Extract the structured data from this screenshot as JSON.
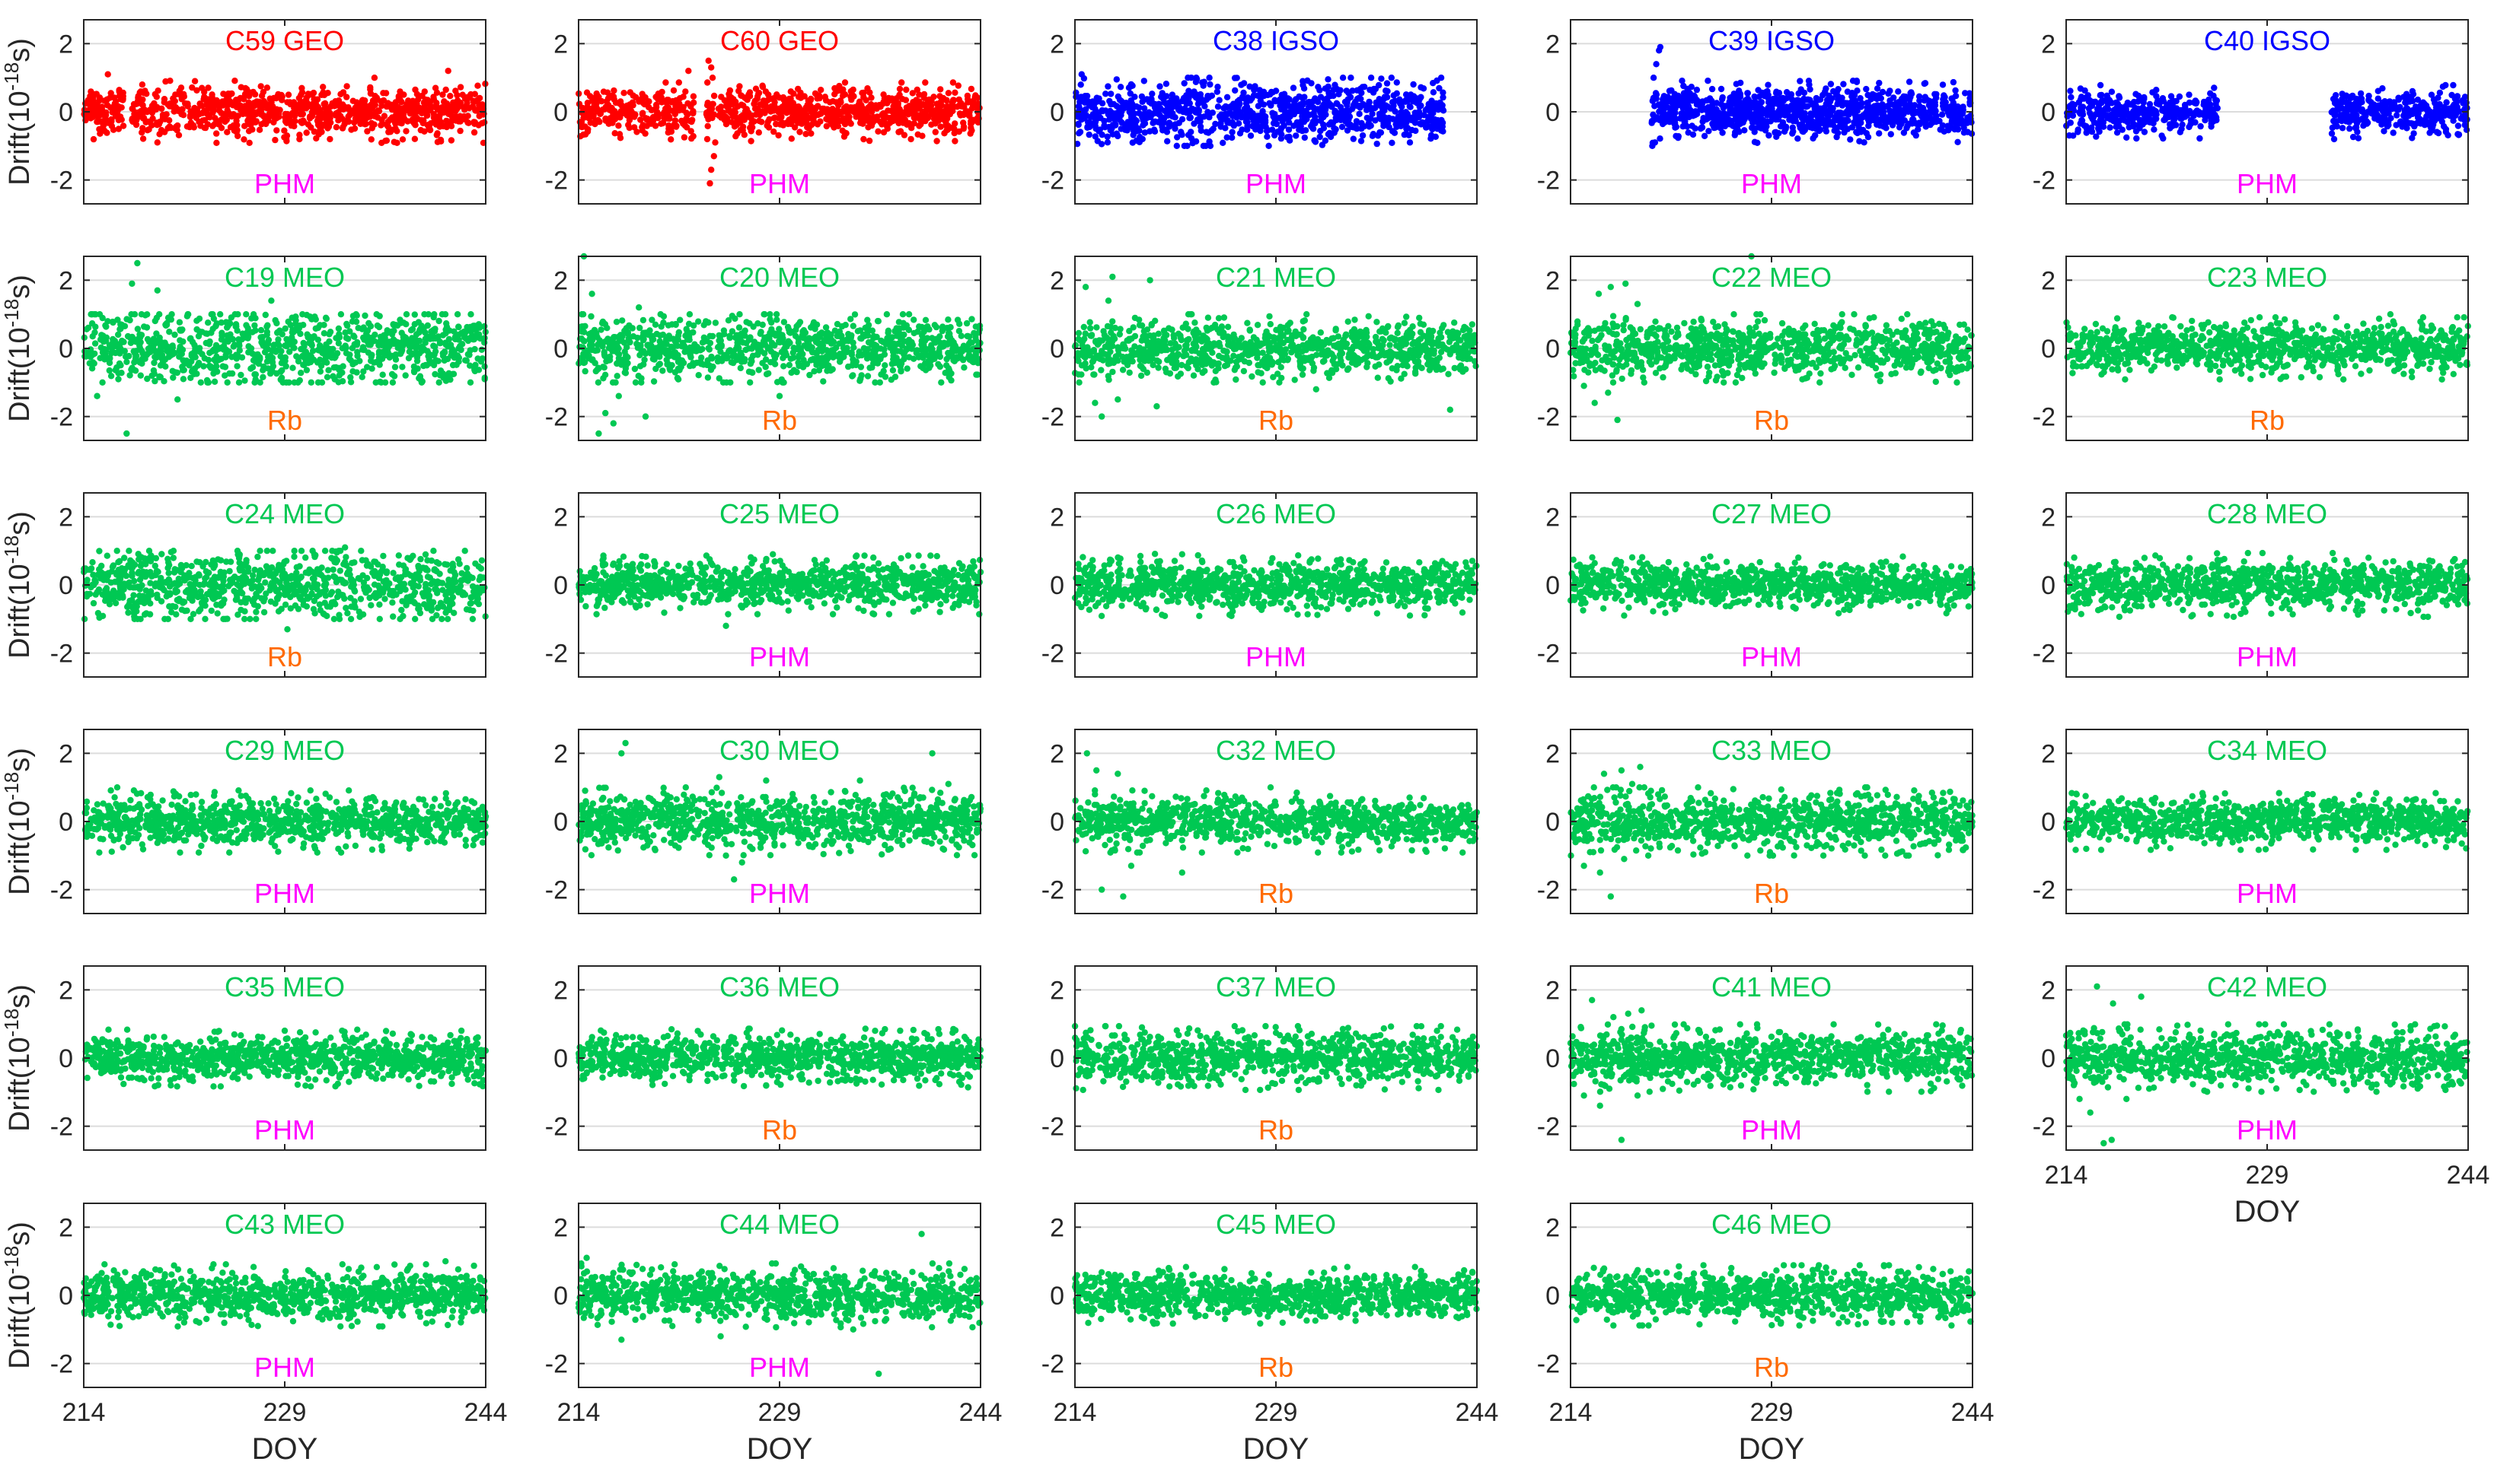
{
  "chart_data": {
    "type": "scatter",
    "layout": "6x5 grid of small multiples",
    "x_axis": {
      "label": "DOY",
      "range": [
        214,
        244
      ],
      "ticks": [
        214,
        229,
        244
      ]
    },
    "y_axis": {
      "label_prefix": "Drift(10",
      "label_exponent": "-18",
      "label_suffix": "s)",
      "range": [
        -2.7,
        2.7
      ],
      "ticks": [
        -2,
        0,
        2
      ]
    },
    "colors": {
      "GEO": "#ff0000",
      "IGSO": "#0000ff",
      "MEO": "#00c853",
      "PHM": "#ff00ff",
      "Rb": "#ff6a00",
      "axis": "#262626",
      "grid": "#dcdcdc"
    },
    "panels": [
      {
        "title": "C59 GEO",
        "orbit": "GEO",
        "clock": "PHM",
        "spread": 0.35,
        "gaps": [
          [
            217.0,
            217.6
          ]
        ],
        "outliers": [
          [
            215.8,
            1.1
          ],
          [
            222.3,
            0.9
          ],
          [
            235.7,
            1.0
          ],
          [
            241.2,
            1.2
          ],
          [
            219.5,
            -0.9
          ],
          [
            230.1,
            -0.8
          ]
        ],
        "xlabels": false,
        "ylabels": true
      },
      {
        "title": "C60 GEO",
        "orbit": "GEO",
        "clock": "PHM",
        "spread": 0.33,
        "gaps": [
          [
            222.6,
            223.5
          ]
        ],
        "outliers": [
          [
            223.7,
            1.5
          ],
          [
            223.9,
            1.3
          ],
          [
            224.0,
            1.0
          ],
          [
            223.8,
            -2.1
          ],
          [
            223.9,
            -1.7
          ],
          [
            224.1,
            -1.3
          ],
          [
            224.2,
            -0.9
          ],
          [
            223.6,
            -0.8
          ],
          [
            222.2,
            1.2
          ]
        ],
        "xlabels": false,
        "ylabels": true
      },
      {
        "title": "C38 IGSO",
        "orbit": "IGSO",
        "clock": "PHM",
        "spread": 0.42,
        "range": [
          214,
          241.5
        ],
        "gaps": [],
        "outliers": [
          [
            214.5,
            1.1
          ],
          [
            221.6,
            -1.0
          ],
          [
            231.0,
            0.9
          ],
          [
            239.0,
            -0.9
          ]
        ],
        "xlabels": false,
        "ylabels": true
      },
      {
        "title": "C39 IGSO",
        "orbit": "IGSO",
        "clock": "PHM",
        "spread": 0.35,
        "range": [
          220.0,
          244
        ],
        "gaps": [],
        "outliers": [
          [
            220.2,
            1.0
          ],
          [
            220.4,
            1.4
          ],
          [
            220.6,
            1.8
          ],
          [
            220.7,
            1.9
          ],
          [
            220.3,
            -0.9
          ],
          [
            220.1,
            -1.0
          ]
        ],
        "xlabels": false,
        "ylabels": true
      },
      {
        "title": "C40 IGSO",
        "orbit": "IGSO",
        "clock": "PHM",
        "spread": 0.3,
        "gaps": [
          [
            225.4,
            233.8
          ]
        ],
        "outliers": [
          [
            234.0,
            -0.8
          ]
        ],
        "xlabels": false,
        "ylabels": true
      },
      {
        "title": "C19 MEO",
        "orbit": "MEO",
        "clock": "Rb",
        "spread": 0.55,
        "gaps": [],
        "outliers": [
          [
            218.0,
            2.5
          ],
          [
            217.6,
            1.9
          ],
          [
            215.0,
            -1.4
          ],
          [
            217.2,
            -2.5
          ],
          [
            219.5,
            1.7
          ],
          [
            221.0,
            -1.5
          ],
          [
            228.0,
            1.4
          ]
        ],
        "xlabels": false,
        "ylabels": true
      },
      {
        "title": "C20 MEO",
        "orbit": "MEO",
        "clock": "Rb",
        "spread": 0.45,
        "gaps": [],
        "outliers": [
          [
            214.4,
            2.7
          ],
          [
            215.0,
            1.6
          ],
          [
            215.5,
            -2.5
          ],
          [
            216.0,
            -1.9
          ],
          [
            217.0,
            -1.4
          ],
          [
            216.6,
            -2.2
          ],
          [
            218.5,
            1.2
          ],
          [
            219.0,
            -2.0
          ],
          [
            229.0,
            -1.4
          ]
        ],
        "xlabels": false,
        "ylabels": true
      },
      {
        "title": "C21 MEO",
        "orbit": "MEO",
        "clock": "Rb",
        "spread": 0.4,
        "gaps": [],
        "outliers": [
          [
            214.8,
            1.8
          ],
          [
            216.8,
            2.1
          ],
          [
            219.6,
            2.0
          ],
          [
            215.5,
            -1.6
          ],
          [
            216.0,
            -2.0
          ],
          [
            217.2,
            -1.5
          ],
          [
            220.1,
            -1.7
          ],
          [
            232.0,
            -1.2
          ],
          [
            242.0,
            -1.8
          ],
          [
            216.5,
            1.4
          ]
        ],
        "xlabels": false,
        "ylabels": true
      },
      {
        "title": "C22 MEO",
        "orbit": "MEO",
        "clock": "Rb",
        "spread": 0.42,
        "gaps": [],
        "outliers": [
          [
            216.1,
            1.6
          ],
          [
            217.0,
            1.8
          ],
          [
            218.1,
            1.9
          ],
          [
            219.0,
            1.3
          ],
          [
            215.0,
            -1.1
          ],
          [
            215.8,
            -1.6
          ],
          [
            217.5,
            -2.1
          ],
          [
            219.5,
            -1.0
          ],
          [
            227.5,
            2.7
          ],
          [
            216.8,
            -1.3
          ]
        ],
        "xlabels": false,
        "ylabels": true
      },
      {
        "title": "C23 MEO",
        "orbit": "MEO",
        "clock": "Rb",
        "spread": 0.35,
        "gaps": [],
        "outliers": [
          [
            222.0,
            0.9
          ],
          [
            238.2,
            1.0
          ],
          [
            230.0,
            -0.9
          ]
        ],
        "xlabels": false,
        "ylabels": true
      },
      {
        "title": "C24 MEO",
        "orbit": "MEO",
        "clock": "Rb",
        "spread": 0.48,
        "gaps": [],
        "outliers": [
          [
            229.2,
            -1.3
          ],
          [
            233.5,
            1.1
          ],
          [
            240.1,
            1.0
          ],
          [
            226.0,
            -1.0
          ]
        ],
        "xlabels": false,
        "ylabels": true
      },
      {
        "title": "C25 MEO",
        "orbit": "MEO",
        "clock": "PHM",
        "spread": 0.33,
        "gaps": [],
        "outliers": [
          [
            228.5,
            0.9
          ],
          [
            225.0,
            -1.2
          ],
          [
            236.0,
            0.8
          ]
        ],
        "xlabels": false,
        "ylabels": true
      },
      {
        "title": "C26 MEO",
        "orbit": "MEO",
        "clock": "PHM",
        "spread": 0.35,
        "gaps": [],
        "outliers": [
          [
            239.0,
            -0.9
          ],
          [
            222.0,
            0.9
          ]
        ],
        "xlabels": false,
        "ylabels": true
      },
      {
        "title": "C27 MEO",
        "orbit": "MEO",
        "clock": "PHM",
        "spread": 0.32,
        "gaps": [],
        "outliers": [
          [
            218.0,
            -0.9
          ],
          [
            231.0,
            0.8
          ]
        ],
        "xlabels": false,
        "ylabels": true
      },
      {
        "title": "C28 MEO",
        "orbit": "MEO",
        "clock": "PHM",
        "spread": 0.36,
        "gaps": [],
        "outliers": [
          [
            214.6,
            0.8
          ],
          [
            226.0,
            -0.9
          ]
        ],
        "xlabels": false,
        "ylabels": true
      },
      {
        "title": "C29 MEO",
        "orbit": "MEO",
        "clock": "PHM",
        "spread": 0.35,
        "gaps": [],
        "outliers": [
          [
            216.5,
            1.0
          ],
          [
            233.0,
            -0.8
          ]
        ],
        "xlabels": false,
        "ylabels": true
      },
      {
        "title": "C30 MEO",
        "orbit": "MEO",
        "clock": "PHM",
        "spread": 0.38,
        "gaps": [],
        "outliers": [
          [
            217.5,
            2.3
          ],
          [
            217.2,
            2.0
          ],
          [
            224.5,
            1.3
          ],
          [
            222.0,
            1.0
          ],
          [
            228.0,
            1.2
          ],
          [
            240.4,
            2.0
          ],
          [
            241.6,
            1.1
          ],
          [
            225.6,
            -1.7
          ],
          [
            226.2,
            -1.2
          ],
          [
            225.0,
            -1.0
          ],
          [
            235.0,
            1.2
          ]
        ],
        "xlabels": false,
        "ylabels": true
      },
      {
        "title": "C32 MEO",
        "orbit": "MEO",
        "clock": "Rb",
        "spread": 0.35,
        "gaps": [],
        "outliers": [
          [
            214.9,
            2.0
          ],
          [
            215.6,
            1.5
          ],
          [
            217.2,
            1.4
          ],
          [
            216.0,
            -2.0
          ],
          [
            217.6,
            -2.2
          ],
          [
            218.2,
            -1.3
          ],
          [
            222.0,
            -1.5
          ],
          [
            228.6,
            1.0
          ],
          [
            219.2,
            0.9
          ]
        ],
        "xlabels": false,
        "ylabels": true
      },
      {
        "title": "C33 MEO",
        "orbit": "MEO",
        "clock": "Rb",
        "spread": 0.4,
        "gaps": [],
        "outliers": [
          [
            216.5,
            1.4
          ],
          [
            217.8,
            1.5
          ],
          [
            218.6,
            1.1
          ],
          [
            219.5,
            1.0
          ],
          [
            220.0,
            0.9
          ],
          [
            215.0,
            -1.3
          ],
          [
            216.2,
            -1.5
          ],
          [
            217.0,
            -2.2
          ],
          [
            218.0,
            -1.1
          ],
          [
            219.8,
            -1.0
          ],
          [
            215.7,
            -0.9
          ],
          [
            219.2,
            1.6
          ]
        ],
        "xlabels": false,
        "ylabels": true
      },
      {
        "title": "C34 MEO",
        "orbit": "MEO",
        "clock": "PHM",
        "spread": 0.32,
        "gaps": [],
        "outliers": [
          [
            215.5,
            -0.8
          ],
          [
            232.0,
            0.8
          ]
        ],
        "xlabels": false,
        "ylabels": true
      },
      {
        "title": "C35 MEO",
        "orbit": "MEO",
        "clock": "PHM",
        "spread": 0.32,
        "gaps": [],
        "outliers": [
          [
            229.0,
            0.8
          ],
          [
            220.5,
            -0.8
          ]
        ],
        "xlabels": false,
        "ylabels": true
      },
      {
        "title": "C36 MEO",
        "orbit": "MEO",
        "clock": "Rb",
        "spread": 0.33,
        "gaps": [],
        "outliers": [
          [
            228.0,
            -0.8
          ],
          [
            238.0,
            0.8
          ]
        ],
        "xlabels": false,
        "ylabels": true
      },
      {
        "title": "C37 MEO",
        "orbit": "MEO",
        "clock": "Rb",
        "spread": 0.36,
        "gaps": [],
        "outliers": [
          [
            219.0,
            0.9
          ],
          [
            235.0,
            -0.8
          ]
        ],
        "xlabels": false,
        "ylabels": true
      },
      {
        "title": "C41 MEO",
        "orbit": "MEO",
        "clock": "PHM",
        "spread": 0.38,
        "gaps": [],
        "outliers": [
          [
            215.6,
            1.7
          ],
          [
            217.2,
            1.2
          ],
          [
            219.3,
            1.4
          ],
          [
            218.3,
            1.3
          ],
          [
            215.0,
            -1.1
          ],
          [
            216.2,
            -1.4
          ],
          [
            217.8,
            -2.4
          ],
          [
            219.0,
            -1.1
          ],
          [
            216.9,
            -0.9
          ]
        ],
        "xlabels": false,
        "ylabels": true
      },
      {
        "title": "C42 MEO",
        "orbit": "MEO",
        "clock": "PHM",
        "spread": 0.38,
        "gaps": [],
        "outliers": [
          [
            216.3,
            2.1
          ],
          [
            217.5,
            1.6
          ],
          [
            219.6,
            1.8
          ],
          [
            215.0,
            -1.2
          ],
          [
            215.8,
            -1.6
          ],
          [
            216.8,
            -2.5
          ],
          [
            217.4,
            -2.4
          ],
          [
            218.5,
            -1.2
          ],
          [
            220.2,
            -0.9
          ]
        ],
        "xlabels": true,
        "ylabels": true
      },
      {
        "title": "C43 MEO",
        "orbit": "MEO",
        "clock": "PHM",
        "spread": 0.35,
        "gaps": [],
        "outliers": [
          [
            241.0,
            1.0
          ],
          [
            227.0,
            -0.9
          ],
          [
            234.0,
            -0.9
          ]
        ],
        "xlabels": true,
        "ylabels": true
      },
      {
        "title": "C44 MEO",
        "orbit": "MEO",
        "clock": "PHM",
        "spread": 0.36,
        "gaps": [],
        "outliers": [
          [
            214.6,
            1.1
          ],
          [
            217.2,
            -1.3
          ],
          [
            221.0,
            -0.9
          ],
          [
            224.6,
            -1.2
          ],
          [
            234.5,
            -1.0
          ],
          [
            236.4,
            -2.3
          ],
          [
            239.6,
            1.8
          ]
        ],
        "xlabels": true,
        "ylabels": true
      },
      {
        "title": "C45 MEO",
        "orbit": "MEO",
        "clock": "Rb",
        "spread": 0.32,
        "gaps": [],
        "outliers": [
          [
            221.0,
            0.8
          ],
          [
            229.5,
            -0.8
          ]
        ],
        "xlabels": true,
        "ylabels": true
      },
      {
        "title": "C46 MEO",
        "orbit": "MEO",
        "clock": "Rb",
        "spread": 0.34,
        "gaps": [],
        "outliers": [
          [
            226.0,
            0.8
          ],
          [
            238.0,
            -0.8
          ]
        ],
        "xlabels": true,
        "ylabels": true
      }
    ]
  }
}
